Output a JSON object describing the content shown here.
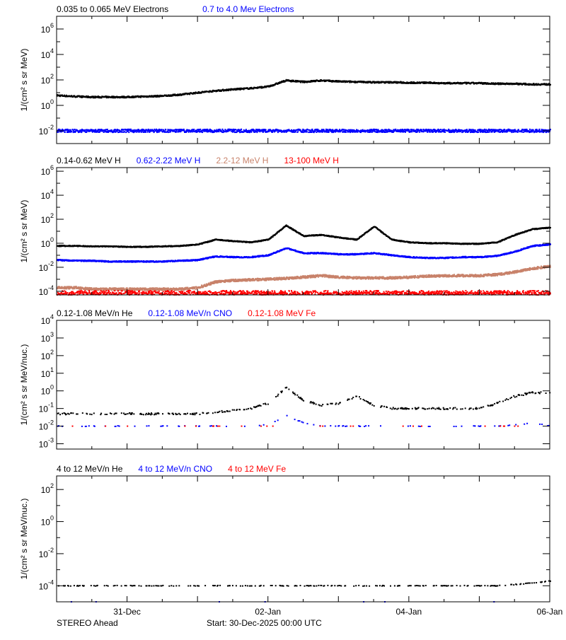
{
  "footer": {
    "left": "STEREO Ahead",
    "center": "Start: 30-Dec-2025 00:00 UTC"
  },
  "colors": {
    "black": "#000000",
    "blue": "#0000ff",
    "brown": "#c8826a",
    "red": "#ff0000"
  },
  "chart_data": [
    {
      "type": "scatter",
      "ylabel": "1/(cm² s sr MeV)",
      "yscale": "log",
      "ylim": [
        0.001,
        10000000
      ],
      "yticks": [
        {
          "v": 0.01,
          "l": "10",
          "e": "-2"
        },
        {
          "v": 1,
          "l": "10",
          "e": "0"
        },
        {
          "v": 100,
          "l": "10",
          "e": "2"
        },
        {
          "v": 10000,
          "l": "10",
          "e": "4"
        },
        {
          "v": 1000000,
          "l": "10",
          "e": "6"
        }
      ],
      "x": [
        "2025-12-30T00",
        "2025-12-30T06",
        "2025-12-30T12",
        "2025-12-30T18",
        "2025-12-31T00",
        "2025-12-31T06",
        "2025-12-31T12",
        "2025-12-31T18",
        "2026-01-01T00",
        "2026-01-01T06",
        "2026-01-01T12",
        "2026-01-01T18",
        "2026-01-02T00",
        "2026-01-02T06",
        "2026-01-02T12",
        "2026-01-02T18",
        "2026-01-03T00",
        "2026-01-03T06",
        "2026-01-03T12",
        "2026-01-03T18",
        "2026-01-04T00",
        "2026-01-04T06",
        "2026-01-04T12",
        "2026-01-04T18",
        "2026-01-05T00",
        "2026-01-05T06",
        "2026-01-05T12",
        "2026-01-05T18",
        "2026-01-06T00"
      ],
      "series": [
        {
          "name": "0.035 to 0.065 MeV Electrons",
          "color": "black",
          "values": [
            6,
            5,
            4.5,
            4.5,
            4.5,
            5,
            5.5,
            7,
            10,
            14,
            18,
            22,
            30,
            90,
            70,
            90,
            75,
            70,
            65,
            65,
            60,
            60,
            55,
            55,
            55,
            50,
            50,
            45,
            45
          ]
        },
        {
          "name": "0.7 to 4.0 Mev Electrons",
          "color": "blue",
          "values": [
            0.01,
            0.01,
            0.01,
            0.01,
            0.01,
            0.01,
            0.01,
            0.01,
            0.01,
            0.01,
            0.01,
            0.01,
            0.01,
            0.01,
            0.01,
            0.01,
            0.01,
            0.01,
            0.01,
            0.01,
            0.01,
            0.01,
            0.01,
            0.01,
            0.01,
            0.01,
            0.01,
            0.01,
            0.01
          ]
        }
      ]
    },
    {
      "type": "scatter",
      "ylabel": "1/(cm² s sr MeV)",
      "yscale": "log",
      "ylim": [
        5e-05,
        2000000
      ],
      "yticks": [
        {
          "v": 0.0001,
          "l": "10",
          "e": "-4"
        },
        {
          "v": 0.01,
          "l": "10",
          "e": "-2"
        },
        {
          "v": 1,
          "l": "10",
          "e": "0"
        },
        {
          "v": 100,
          "l": "10",
          "e": "2"
        },
        {
          "v": 10000,
          "l": "10",
          "e": "4"
        },
        {
          "v": 1000000,
          "l": "10",
          "e": "6"
        }
      ],
      "series": [
        {
          "name": "0.14-0.62 MeV H",
          "color": "black",
          "values": [
            0.6,
            0.6,
            0.55,
            0.55,
            0.5,
            0.5,
            0.55,
            0.6,
            0.8,
            2,
            1.5,
            1.2,
            2,
            30,
            4,
            5,
            3,
            2,
            25,
            2,
            1.2,
            1,
            1,
            0.9,
            0.9,
            1.2,
            5,
            15,
            20
          ]
        },
        {
          "name": "0.62-2.22 MeV H",
          "color": "blue",
          "values": [
            0.04,
            0.035,
            0.035,
            0.03,
            0.03,
            0.03,
            0.03,
            0.035,
            0.04,
            0.08,
            0.07,
            0.07,
            0.1,
            0.4,
            0.15,
            0.15,
            0.12,
            0.12,
            0.15,
            0.1,
            0.07,
            0.06,
            0.06,
            0.07,
            0.07,
            0.09,
            0.2,
            0.6,
            0.8
          ]
        },
        {
          "name": "2.2-12 MeV H",
          "color": "brown",
          "values": [
            0.0002,
            0.0002,
            0.00015,
            0.00015,
            0.00015,
            0.00015,
            0.00015,
            0.00015,
            0.0002,
            0.0006,
            0.0008,
            0.0009,
            0.001,
            0.0012,
            0.0015,
            0.002,
            0.0015,
            0.0013,
            0.0013,
            0.0013,
            0.0015,
            0.0018,
            0.002,
            0.002,
            0.002,
            0.0025,
            0.004,
            0.008,
            0.012
          ]
        },
        {
          "name": "13-100 MeV H",
          "color": "red",
          "values": [
            8e-05,
            8e-05,
            8e-05,
            8e-05,
            8e-05,
            8e-05,
            8e-05,
            8e-05,
            8e-05,
            8e-05,
            8e-05,
            8e-05,
            8e-05,
            8e-05,
            8e-05,
            8e-05,
            8e-05,
            8e-05,
            8e-05,
            8e-05,
            8e-05,
            8e-05,
            8e-05,
            8e-05,
            8e-05,
            8e-05,
            8e-05,
            8e-05,
            8e-05
          ]
        }
      ]
    },
    {
      "type": "scatter",
      "ylabel": "1/(cm² s sr MeV/nuc.)",
      "yscale": "log",
      "ylim": [
        0.0005,
        10000
      ],
      "yticks": [
        {
          "v": 0.001,
          "l": "10",
          "e": "-3"
        },
        {
          "v": 0.01,
          "l": "10",
          "e": "-2"
        },
        {
          "v": 0.1,
          "l": "10",
          "e": "-1"
        },
        {
          "v": 1,
          "l": "10",
          "e": "0"
        },
        {
          "v": 10,
          "l": "10",
          "e": "1"
        },
        {
          "v": 100,
          "l": "10",
          "e": "2"
        },
        {
          "v": 1000,
          "l": "10",
          "e": "3"
        },
        {
          "v": 10000,
          "l": "10",
          "e": "4"
        }
      ],
      "series": [
        {
          "name": "0.12-1.08 MeV/n He",
          "color": "black",
          "values": [
            0.05,
            0.05,
            0.05,
            0.05,
            0.05,
            0.05,
            0.05,
            0.05,
            0.05,
            0.06,
            0.08,
            0.1,
            0.2,
            1.5,
            0.3,
            0.15,
            0.2,
            0.5,
            0.15,
            0.1,
            0.1,
            0.1,
            0.1,
            0.1,
            0.1,
            0.2,
            0.5,
            0.8,
            0.8
          ]
        },
        {
          "name": "0.12-1.08 MeV/n CNO",
          "color": "blue",
          "values": [
            0.01,
            0.01,
            0.01,
            0.01,
            0.01,
            0.01,
            0.01,
            0.01,
            0.01,
            0.01,
            0.01,
            0.01,
            0.012,
            0.04,
            0.015,
            0.01,
            0.01,
            0.01,
            0.01,
            0.01,
            0.01,
            0.01,
            0.01,
            0.01,
            0.01,
            0.01,
            0.012,
            0.015,
            0.01
          ]
        },
        {
          "name": "0.12-1.08 MeV Fe",
          "color": "red",
          "values": [
            0.01,
            0.01,
            0.01,
            0.01,
            0.01,
            0.01,
            0.01,
            0.01,
            0.01,
            0.01,
            0.01,
            0.01,
            0.01,
            0.01,
            0.01,
            0.01,
            0.01,
            0.01,
            0.01,
            0.01,
            0.01,
            0.01,
            0.01,
            0.01,
            0.01,
            0.01,
            0.01,
            0.01,
            0.01
          ]
        }
      ]
    },
    {
      "type": "scatter",
      "ylabel": "1/(cm² s sr MeV/nuc.)",
      "yscale": "log",
      "ylim": [
        1e-05,
        700
      ],
      "yticks": [
        {
          "v": 0.0001,
          "l": "10",
          "e": "-4"
        },
        {
          "v": 0.01,
          "l": "10",
          "e": "-2"
        },
        {
          "v": 1,
          "l": "10",
          "e": "0"
        },
        {
          "v": 100,
          "l": "10",
          "e": "2"
        }
      ],
      "xticklabels": [
        "31-Dec",
        "02-Jan",
        "04-Jan",
        "06-Jan"
      ],
      "series": [
        {
          "name": "4 to 12 MeV/n He",
          "color": "black",
          "values": [
            0.0001,
            0.0001,
            0.0001,
            0.0001,
            0.0001,
            0.0001,
            0.0001,
            0.0001,
            0.0001,
            0.0001,
            0.0001,
            0.0001,
            0.0001,
            0.0001,
            0.0001,
            0.0001,
            0.0001,
            0.0001,
            0.0001,
            0.0001,
            0.0001,
            0.0001,
            0.0001,
            0.0001,
            0.0001,
            0.0001,
            0.00012,
            0.00015,
            0.0002
          ]
        },
        {
          "name": "4 to 12 MeV/n CNO",
          "color": "blue",
          "values": [
            1e-05,
            1e-05,
            1e-05,
            1e-05,
            1e-05,
            1e-05,
            1e-05,
            1e-05,
            1e-05,
            1e-05,
            1e-05,
            1e-05,
            1e-05,
            1e-05,
            1e-05,
            1e-05,
            1e-05,
            1e-05,
            1e-05,
            1e-05,
            1e-05,
            1e-05,
            1e-05,
            1e-05,
            1e-05,
            1e-05,
            1e-05,
            1e-05,
            1e-05
          ]
        },
        {
          "name": "4 to 12 MeV Fe",
          "color": "red",
          "values": [
            1e-05,
            1e-05,
            1e-05,
            1e-05,
            1e-05,
            1e-05,
            1e-05,
            1e-05,
            1e-05,
            1e-05,
            1e-05,
            1e-05,
            1e-05,
            1e-05,
            1e-05,
            1e-05,
            1e-05,
            1e-05,
            1e-05,
            1e-05,
            1e-05,
            1e-05,
            1e-05,
            1e-05,
            1e-05,
            1e-05,
            1e-05,
            1e-05,
            1e-05
          ]
        }
      ]
    }
  ]
}
